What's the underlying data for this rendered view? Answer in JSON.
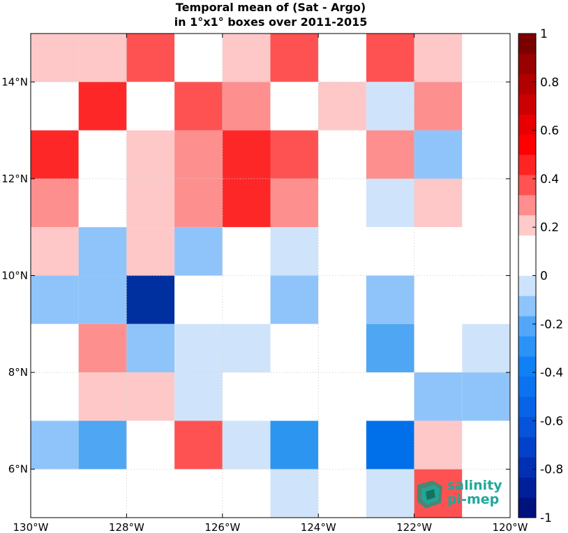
{
  "title": {
    "line1": "Temporal mean of (Sat - Argo)",
    "line2": "in 1°x1° boxes over 2011-2015"
  },
  "logo": {
    "line1": "salinity",
    "line2": "pi-mep"
  },
  "colors": {
    "cells": {
      "-1": "#002fa0",
      "-0.5": "#0070ea",
      "-0.4": "#2b95ef",
      "-0.3": "#4fa6f2",
      "-0.2": "#8fc4fb",
      "-0.1": "#cfe4fa",
      "0": "#ffffff",
      "0.1": "#fec8c8",
      "0.2": "#fe8f8f",
      "0.3": "#fe5252",
      "0.4": "#fe2727"
    },
    "colorbar": [
      "#00127e",
      "#00209a",
      "#0230b4",
      "#0441c9",
      "#0753da",
      "#0963e6",
      "#0b72f0",
      "#1080f5",
      "#2a93f8",
      "#52a7fa",
      "#8ec4fb",
      "#cce3fb",
      "#ffffff",
      "#ffffff",
      "#ffcaca",
      "#ff8e8e",
      "#ff5252",
      "#ff2424",
      "#ff0000",
      "#e80000",
      "#cc0000",
      "#b20000",
      "#990000",
      "#7a0000"
    ]
  },
  "chart_data": {
    "type": "heatmap",
    "title": "Temporal mean of (Sat - Argo) in 1°x1° boxes over 2011-2015",
    "x_ticks": [
      "130°W",
      "128°W",
      "126°W",
      "124°W",
      "122°W",
      "120°W"
    ],
    "y_ticks": [
      "14°N",
      "12°N",
      "10°N",
      "8°N",
      "6°N"
    ],
    "x_range": [
      -130,
      -120
    ],
    "y_range": [
      5,
      15
    ],
    "grid": true,
    "lon_centers": [
      -129.5,
      -128.5,
      -127.5,
      -126.5,
      -125.5,
      -124.5,
      -123.5,
      -122.5,
      -121.5,
      -120.5
    ],
    "lat_centers": [
      14.5,
      13.5,
      12.5,
      11.5,
      10.5,
      9.5,
      8.5,
      7.5,
      6.5,
      5.5
    ],
    "values": [
      [
        0.1,
        0.1,
        0.3,
        0,
        0.1,
        0.3,
        0,
        0.3,
        0.1,
        0
      ],
      [
        0,
        0.4,
        0,
        0.3,
        0.2,
        0,
        0.1,
        -0.1,
        0.2,
        0
      ],
      [
        0.4,
        0,
        0.1,
        0.2,
        0.4,
        0.3,
        0,
        0.2,
        -0.2,
        0
      ],
      [
        0.2,
        0,
        0.1,
        0.2,
        0.4,
        0.2,
        0,
        -0.1,
        0.1,
        0
      ],
      [
        0.1,
        -0.2,
        0.1,
        -0.2,
        0,
        -0.1,
        0,
        0,
        0,
        0
      ],
      [
        -0.2,
        -0.2,
        -1,
        0,
        0,
        -0.2,
        0,
        -0.2,
        0,
        0
      ],
      [
        0,
        0.2,
        -0.2,
        -0.1,
        -0.1,
        0,
        0,
        -0.3,
        0,
        -0.1
      ],
      [
        0,
        0.1,
        0.1,
        -0.1,
        0,
        0,
        0,
        0,
        -0.2,
        -0.2
      ],
      [
        -0.2,
        -0.3,
        0,
        0.3,
        -0.1,
        -0.4,
        0,
        -0.5,
        0.1,
        0
      ],
      [
        0,
        0,
        0,
        0,
        0,
        -0.1,
        0,
        -0.1,
        0.3,
        0
      ]
    ],
    "colorbar": {
      "range": [
        -1,
        1
      ],
      "ticks": [
        "1",
        "0.8",
        "0.6",
        "0.4",
        "0.2",
        "0",
        "-0.2",
        "-0.4",
        "-0.6",
        "-0.8",
        "-1"
      ],
      "tick_values": [
        1,
        0.8,
        0.6,
        0.4,
        0.2,
        0,
        -0.2,
        -0.4,
        -0.6,
        -0.8,
        -1
      ]
    }
  }
}
